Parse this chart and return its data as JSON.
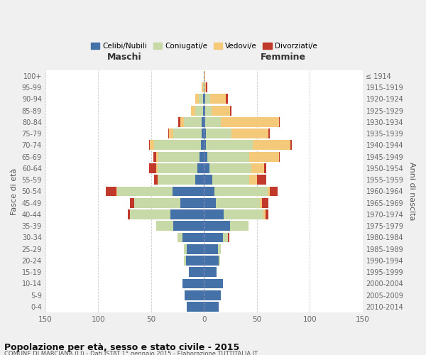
{
  "age_groups": [
    "0-4",
    "5-9",
    "10-14",
    "15-19",
    "20-24",
    "25-29",
    "30-34",
    "35-39",
    "40-44",
    "45-49",
    "50-54",
    "55-59",
    "60-64",
    "65-69",
    "70-74",
    "75-79",
    "80-84",
    "85-89",
    "90-94",
    "95-99",
    "100+"
  ],
  "birth_years": [
    "2010-2014",
    "2005-2009",
    "2000-2004",
    "1995-1999",
    "1990-1994",
    "1985-1989",
    "1980-1984",
    "1975-1979",
    "1970-1974",
    "1965-1969",
    "1960-1964",
    "1955-1959",
    "1950-1954",
    "1945-1949",
    "1940-1944",
    "1935-1939",
    "1930-1934",
    "1925-1929",
    "1920-1924",
    "1915-1919",
    "≤ 1914"
  ],
  "males": {
    "celibi": [
      16,
      18,
      20,
      14,
      17,
      16,
      20,
      29,
      32,
      22,
      30,
      8,
      6,
      4,
      3,
      2,
      2,
      1,
      1,
      0,
      0
    ],
    "coniugati": [
      0,
      0,
      0,
      0,
      2,
      3,
      5,
      16,
      38,
      44,
      52,
      35,
      38,
      39,
      44,
      27,
      17,
      7,
      4,
      1,
      0
    ],
    "vedovi": [
      0,
      0,
      0,
      0,
      0,
      0,
      0,
      0,
      0,
      0,
      1,
      1,
      1,
      2,
      4,
      4,
      3,
      4,
      3,
      1,
      0
    ],
    "divorziati": [
      0,
      0,
      0,
      0,
      0,
      0,
      0,
      0,
      2,
      4,
      10,
      3,
      7,
      3,
      1,
      1,
      2,
      0,
      0,
      0,
      0
    ]
  },
  "females": {
    "nubili": [
      14,
      16,
      18,
      12,
      14,
      13,
      18,
      25,
      19,
      11,
      10,
      8,
      5,
      3,
      2,
      2,
      1,
      1,
      1,
      0,
      0
    ],
    "coniugate": [
      0,
      0,
      0,
      0,
      1,
      3,
      5,
      17,
      37,
      42,
      50,
      35,
      40,
      40,
      44,
      24,
      15,
      6,
      5,
      0,
      0
    ],
    "vedove": [
      0,
      0,
      0,
      0,
      0,
      0,
      0,
      0,
      2,
      2,
      2,
      7,
      12,
      28,
      36,
      35,
      55,
      18,
      15,
      2,
      1
    ],
    "divorziate": [
      0,
      0,
      0,
      0,
      0,
      0,
      1,
      0,
      3,
      6,
      8,
      9,
      2,
      1,
      1,
      1,
      1,
      1,
      2,
      1,
      0
    ]
  },
  "colors": {
    "celibi": "#4472a8",
    "coniugati": "#c8d9a8",
    "vedovi": "#f5c97a",
    "divorziati": "#c0392b"
  },
  "title": "Popolazione per età, sesso e stato civile - 2015",
  "subtitle": "COMUNE DI MARCIANA (LI) - Dati ISTAT 1° gennaio 2015 - Elaborazione TUTTITALIA.IT",
  "label_maschi": "Maschi",
  "label_femmine": "Femmine",
  "ylabel_left": "Fasce di età",
  "ylabel_right": "Anni di nascita",
  "xlim": 150,
  "bg_color": "#f0f0f0",
  "plot_bg": "#ffffff"
}
